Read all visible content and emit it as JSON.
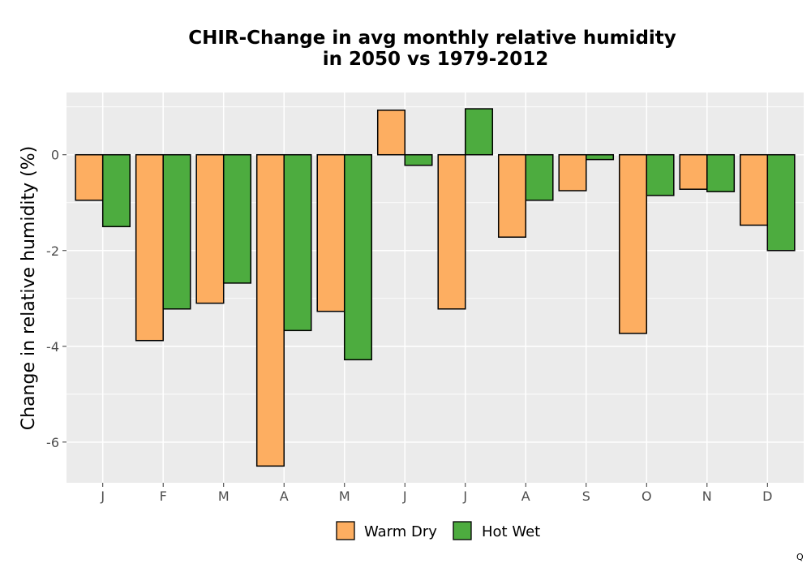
{
  "chart_data": {
    "type": "bar",
    "title_lines": [
      "CHIR-Change in avg monthly relative humidity",
      "in 2050 vs 1979-2012"
    ],
    "xlabel": "",
    "ylabel": "Change in relative humidity (%)",
    "categories": [
      "J",
      "F",
      "M",
      "A",
      "M",
      "J",
      "J",
      "A",
      "S",
      "O",
      "N",
      "D"
    ],
    "series": [
      {
        "name": "Warm Dry",
        "color": "#FDAE61",
        "values": [
          -0.95,
          -3.88,
          -3.1,
          -6.5,
          -3.27,
          0.93,
          -3.22,
          -1.72,
          -0.75,
          -3.73,
          -0.72,
          -1.47
        ]
      },
      {
        "name": "Hot Wet",
        "color": "#4DAC3F",
        "values": [
          -1.5,
          -3.22,
          -2.68,
          -3.67,
          -4.28,
          -0.22,
          0.96,
          -0.95,
          -0.1,
          -0.85,
          -0.77,
          -2.0
        ]
      }
    ],
    "ylim": [
      -6.85,
      1.3
    ],
    "yticks": [
      0,
      -2,
      -4,
      -6
    ],
    "ytick_labels": [
      "0",
      "-2",
      "-4",
      "-6"
    ],
    "grid": true,
    "legend_position": "bottom",
    "panel_color": "#EBEBEB",
    "grid_color": "#FFFFFF",
    "bar_stroke": "#000000"
  },
  "corner_note": "Q"
}
